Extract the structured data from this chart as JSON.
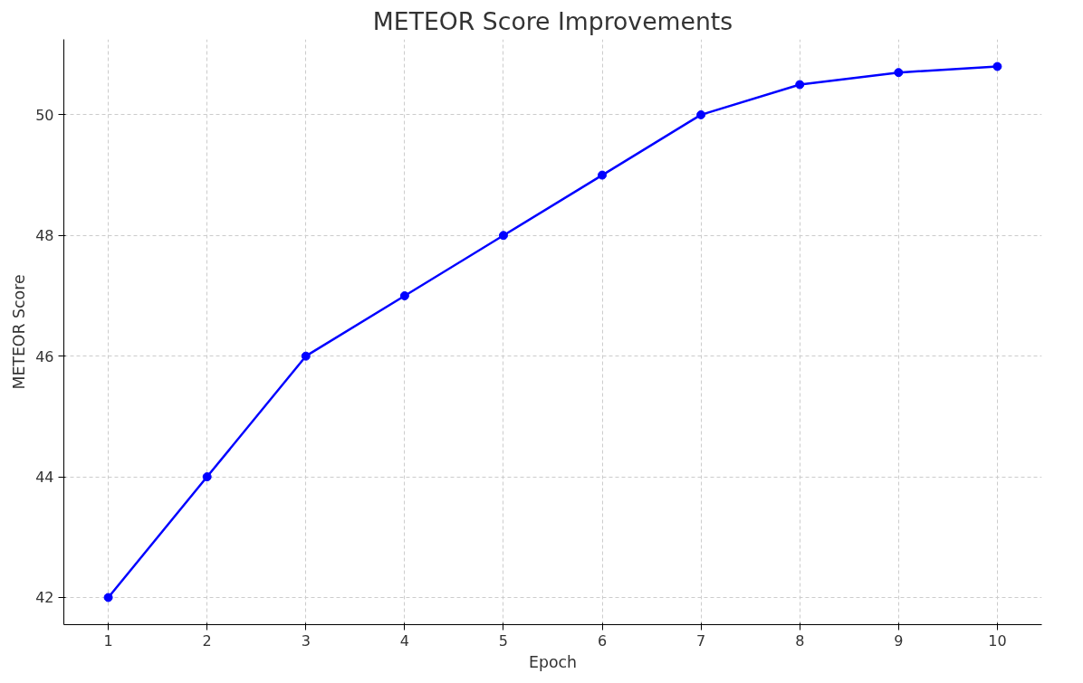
{
  "chart_data": {
    "type": "line",
    "title": "METEOR Score Improvements",
    "xlabel": "Epoch",
    "ylabel": "METEOR Score",
    "x": [
      1,
      2,
      3,
      4,
      5,
      6,
      7,
      8,
      9,
      10
    ],
    "series": [
      {
        "color": "#0000ff",
        "values": [
          42,
          44,
          46,
          47,
          48,
          49,
          50,
          50.5,
          50.7,
          50.8
        ]
      }
    ],
    "xlim": [
      0.55,
      10.45
    ],
    "ylim": [
      41.55,
      51.25
    ],
    "xticks": [
      1,
      2,
      3,
      4,
      5,
      6,
      7,
      8,
      9,
      10
    ],
    "yticks": [
      42,
      44,
      46,
      48,
      50
    ],
    "grid": true,
    "marker": "circle",
    "line_style": "solid"
  }
}
